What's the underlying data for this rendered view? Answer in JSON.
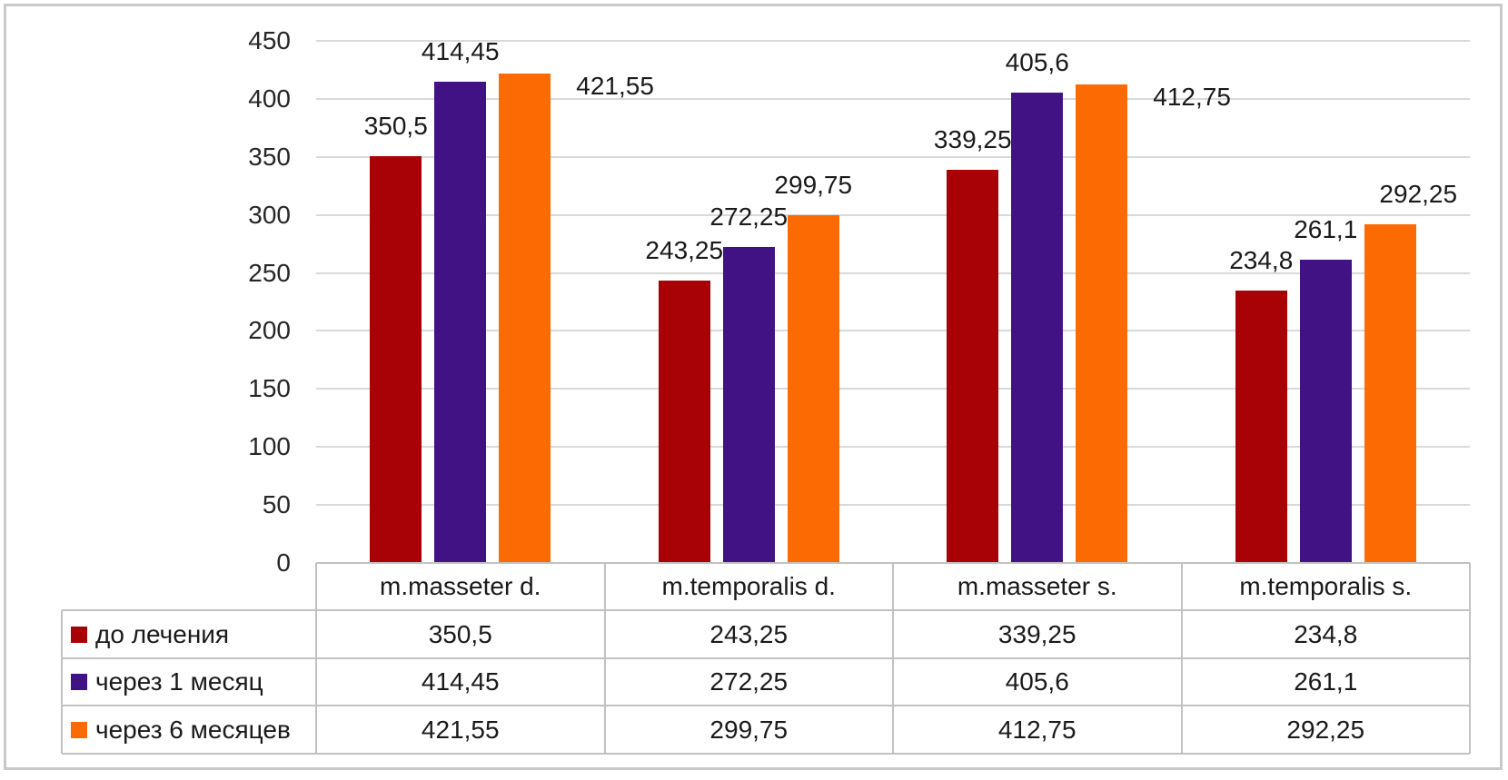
{
  "figure": {
    "background": "#FFFFFF",
    "border_color": "#C9C9C9"
  },
  "chart_data": {
    "type": "bar",
    "title": "",
    "categories": [
      "m.masseter d.",
      "m.temporalis d.",
      "m.masseter s.",
      "m.temporalis s."
    ],
    "series": [
      {
        "name": "до лечения",
        "color": "#A80106",
        "values": [
          350.5,
          243.25,
          339.25,
          234.8
        ],
        "labels": [
          "350,5",
          "243,25",
          "339,25",
          "234,8"
        ]
      },
      {
        "name": "через 1 месяц",
        "color": "#401283",
        "values": [
          414.45,
          272.25,
          405.6,
          261.1
        ],
        "labels": [
          "414,45",
          "272,25",
          "405,6",
          "261,1"
        ]
      },
      {
        "name": "через 6 месяцев",
        "color": "#FC6A03",
        "values": [
          421.55,
          299.75,
          412.75,
          292.25
        ],
        "labels": [
          "421,55",
          "299,75",
          "412,75",
          "292,25"
        ]
      }
    ],
    "ylim": [
      0,
      450
    ],
    "ytick_step": 50,
    "ytick_labels": [
      "0",
      "50",
      "100",
      "150",
      "200",
      "250",
      "300",
      "350",
      "400",
      "450"
    ],
    "grid": true,
    "gridline_color": "#D9D9D9",
    "axis_text_color": "#262626",
    "data_label_color": "#1A1A1A",
    "legend_position": "data-table-left",
    "data_table_shown": true,
    "table_border_color": "#C2C2C2",
    "layout_hints": {
      "series3_label_modes": [
        {
          "mode": "right",
          "dx": 0
        },
        {
          "mode": "above",
          "dx": 0
        },
        {
          "mode": "right",
          "dx": 0
        },
        {
          "mode": "above",
          "dx": 31
        }
      ]
    }
  }
}
